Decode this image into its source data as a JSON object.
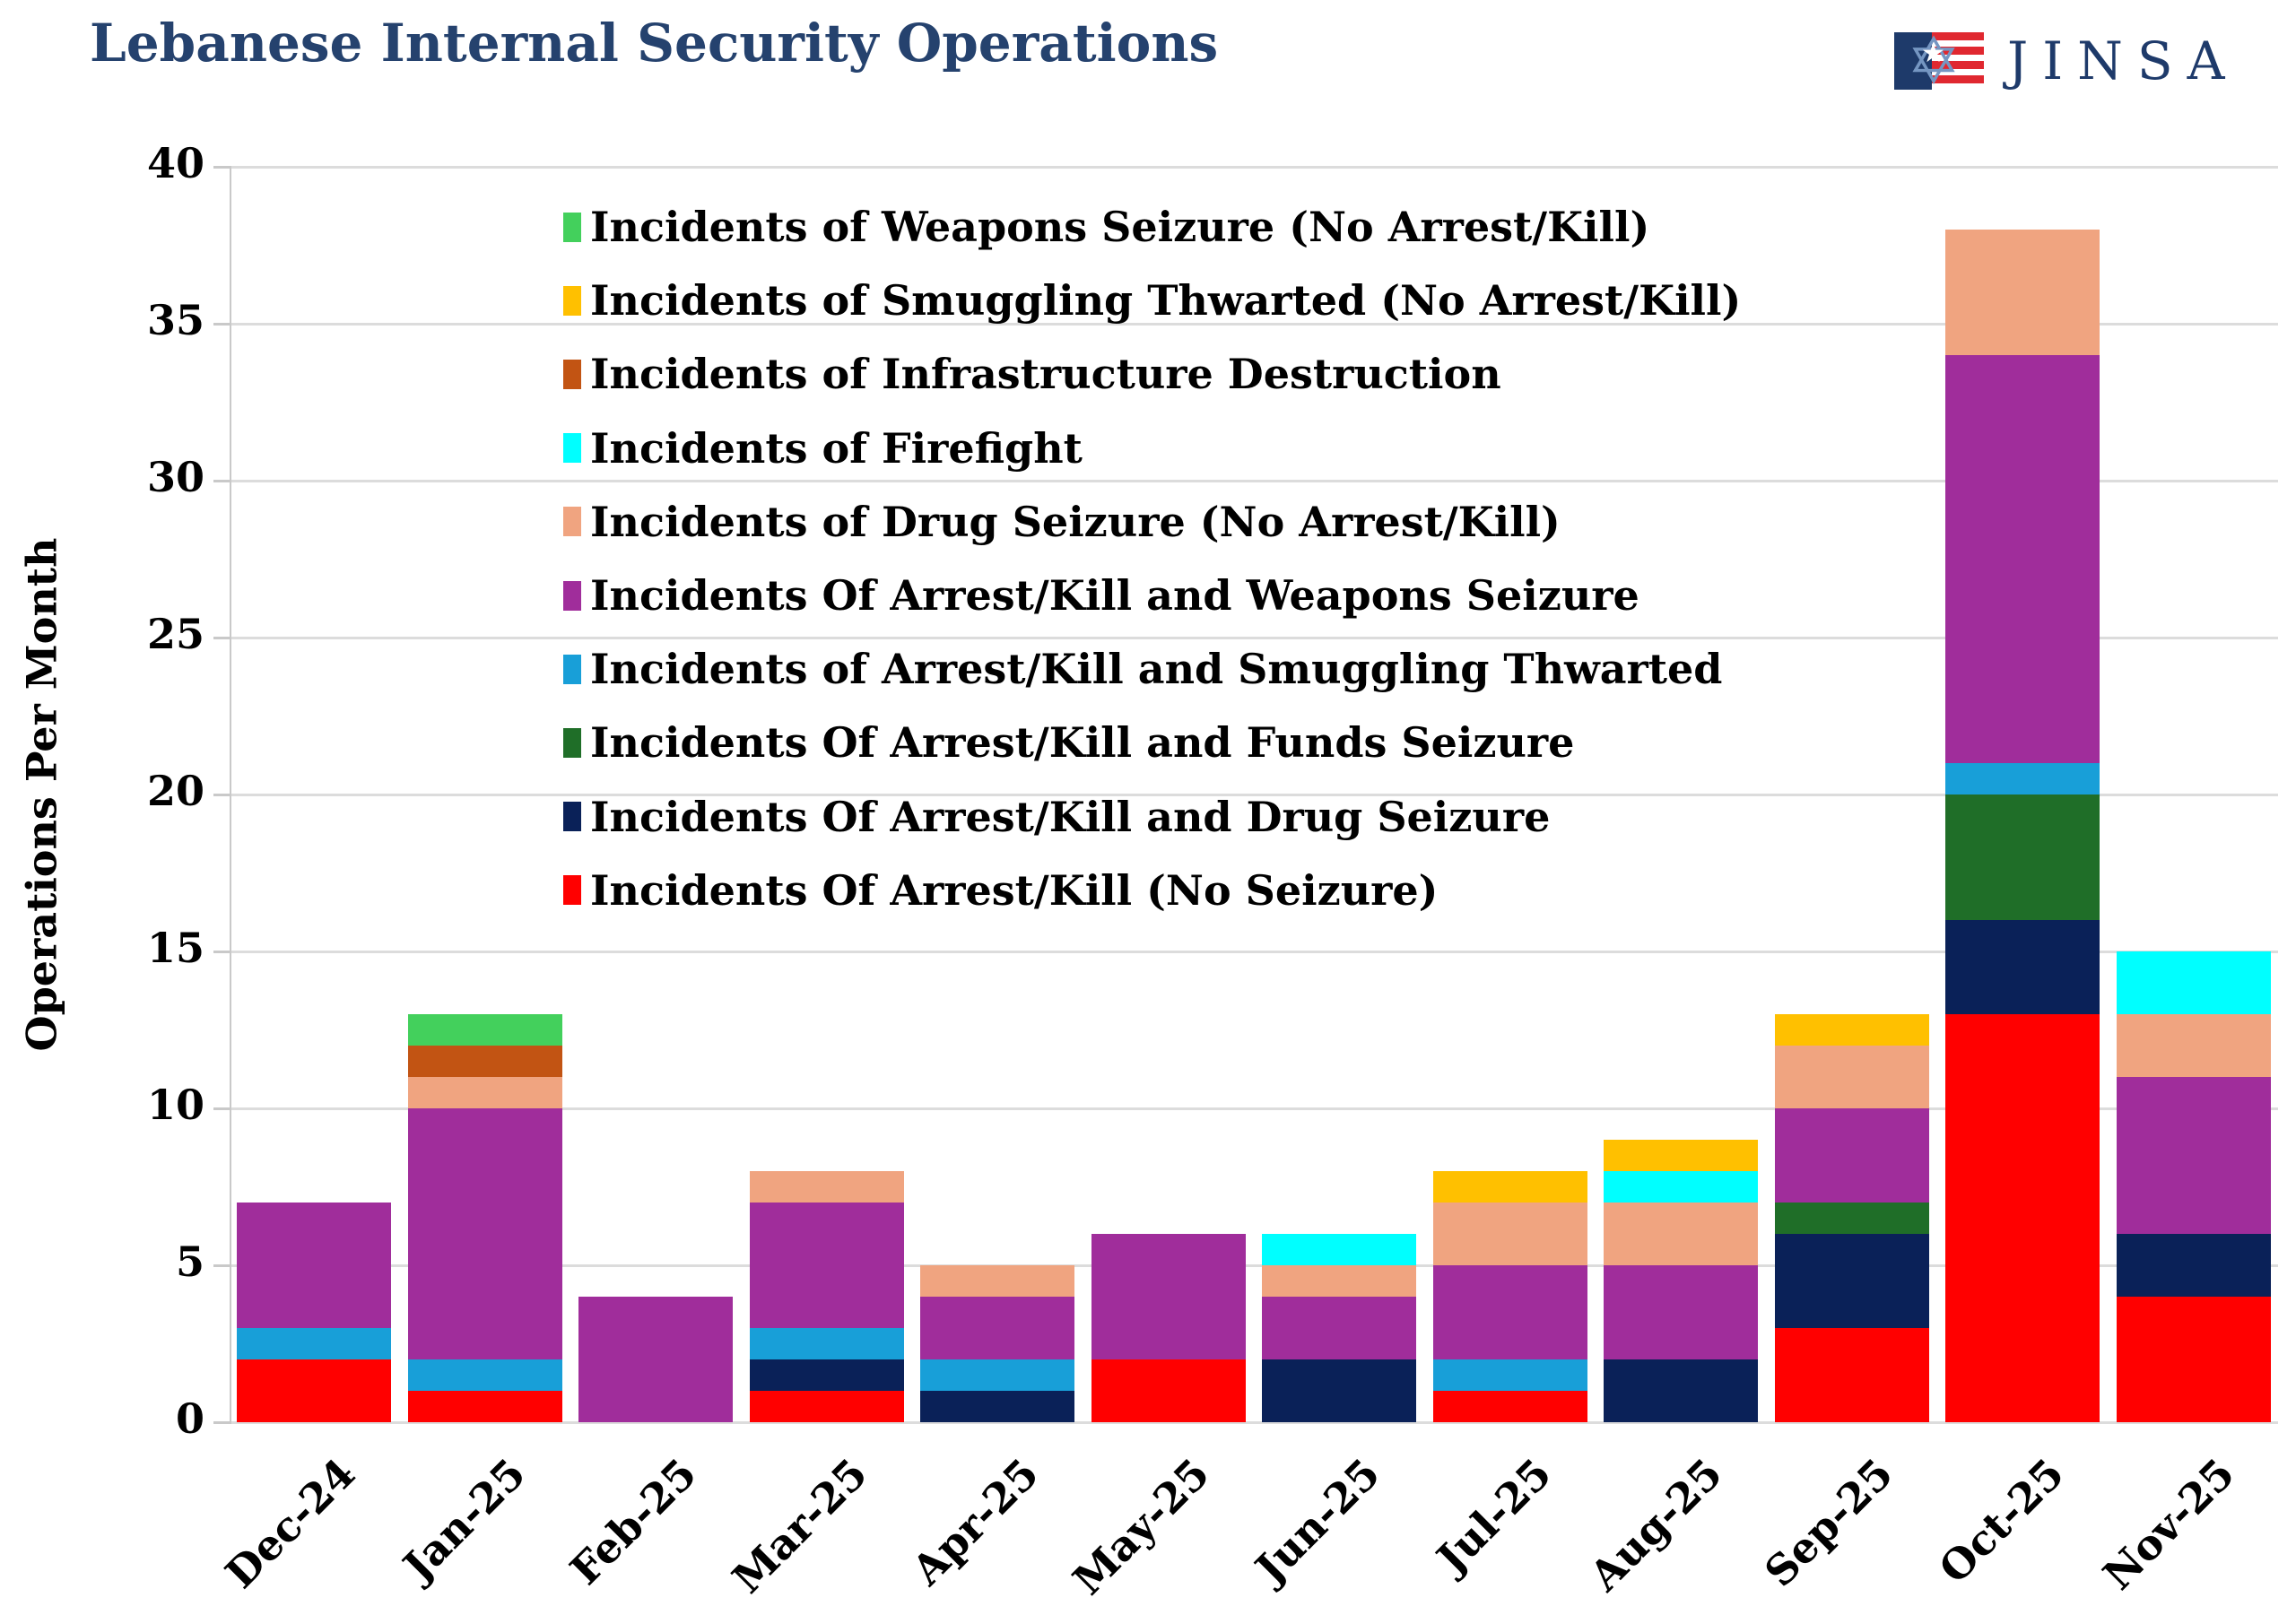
{
  "header": {
    "title": "Lebanese Internal Security Operations",
    "logo": {
      "text": "JINSA",
      "icon": "jinsa-flag-star-icon"
    }
  },
  "y_axis": {
    "label": "Operations Per Month"
  },
  "legend": {
    "items": [
      {
        "label": "Incidents of Weapons Seizure (No Arrest/Kill)",
        "color": "#43D05C"
      },
      {
        "label": "Incidents of Smuggling Thwarted (No Arrest/Kill)",
        "color": "#FFC000"
      },
      {
        "label": "Incidents of Infrastructure Destruction",
        "color": "#C25413"
      },
      {
        "label": "Incidents of Firefight",
        "color": "#00FFFF"
      },
      {
        "label": "Incidents of Drug Seizure (No Arrest/Kill)",
        "color": "#F0A480"
      },
      {
        "label": "Incidents Of Arrest/Kill and Weapons Seizure",
        "color": "#A02D9B"
      },
      {
        "label": "Incidents of Arrest/Kill and Smuggling Thwarted",
        "color": "#189FD8"
      },
      {
        "label": "Incidents Of Arrest/Kill and Funds Seizure",
        "color": "#1F6E28"
      },
      {
        "label": "Incidents Of Arrest/Kill and Drug Seizure",
        "color": "#0A2158"
      },
      {
        "label": "Incidents Of Arrest/Kill (No Seizure)",
        "color": "#FF0000"
      }
    ]
  },
  "chart_data": {
    "type": "bar",
    "stacked": true,
    "title": "Lebanese Internal Security Operations",
    "xlabel": "",
    "ylabel": "Operations Per Month",
    "ylim": [
      0,
      40
    ],
    "yticks": [
      0,
      5,
      10,
      15,
      20,
      25,
      30,
      35,
      40
    ],
    "grid": "horizontal",
    "legend_position": "inside-top-left",
    "categories": [
      "Dec-24",
      "Jan-25",
      "Feb-25",
      "Mar-25",
      "Apr-25",
      "May-25",
      "Jun-25",
      "Jul-25",
      "Aug-25",
      "Sep-25",
      "Oct-25",
      "Nov-25"
    ],
    "series": [
      {
        "name": "Incidents Of Arrest/Kill (No Seizure)",
        "color": "#FF0000",
        "values": [
          2,
          1,
          0,
          1,
          0,
          2,
          0,
          1,
          0,
          3,
          13,
          4
        ]
      },
      {
        "name": "Incidents Of Arrest/Kill and Drug Seizure",
        "color": "#0A2158",
        "values": [
          0,
          0,
          0,
          1,
          1,
          0,
          2,
          0,
          2,
          3,
          3,
          2
        ]
      },
      {
        "name": "Incidents Of Arrest/Kill and Funds Seizure",
        "color": "#1F6E28",
        "values": [
          0,
          0,
          0,
          0,
          0,
          0,
          0,
          0,
          0,
          1,
          4,
          0
        ]
      },
      {
        "name": "Incidents of Arrest/Kill and Smuggling Thwarted",
        "color": "#189FD8",
        "values": [
          1,
          1,
          0,
          1,
          1,
          0,
          0,
          1,
          0,
          0,
          1,
          0
        ]
      },
      {
        "name": "Incidents Of Arrest/Kill and Weapons Seizure",
        "color": "#A02D9B",
        "values": [
          4,
          8,
          4,
          4,
          2,
          4,
          2,
          3,
          3,
          3,
          13,
          5
        ]
      },
      {
        "name": "Incidents of Drug Seizure (No Arrest/Kill)",
        "color": "#F0A480",
        "values": [
          0,
          1,
          0,
          1,
          1,
          0,
          1,
          2,
          2,
          2,
          4,
          2
        ]
      },
      {
        "name": "Incidents of Firefight",
        "color": "#00FFFF",
        "values": [
          0,
          0,
          0,
          0,
          0,
          0,
          1,
          0,
          1,
          0,
          0,
          2
        ]
      },
      {
        "name": "Incidents of Infrastructure Destruction",
        "color": "#C25413",
        "values": [
          0,
          1,
          0,
          0,
          0,
          0,
          0,
          0,
          0,
          0,
          0,
          0
        ]
      },
      {
        "name": "Incidents of Smuggling Thwarted (No Arrest/Kill)",
        "color": "#FFC000",
        "values": [
          0,
          0,
          0,
          0,
          0,
          0,
          0,
          1,
          1,
          1,
          0,
          0
        ]
      },
      {
        "name": "Incidents of Weapons Seizure (No Arrest/Kill)",
        "color": "#43D05C",
        "values": [
          0,
          1,
          0,
          0,
          0,
          0,
          0,
          0,
          0,
          0,
          0,
          0
        ]
      }
    ]
  }
}
